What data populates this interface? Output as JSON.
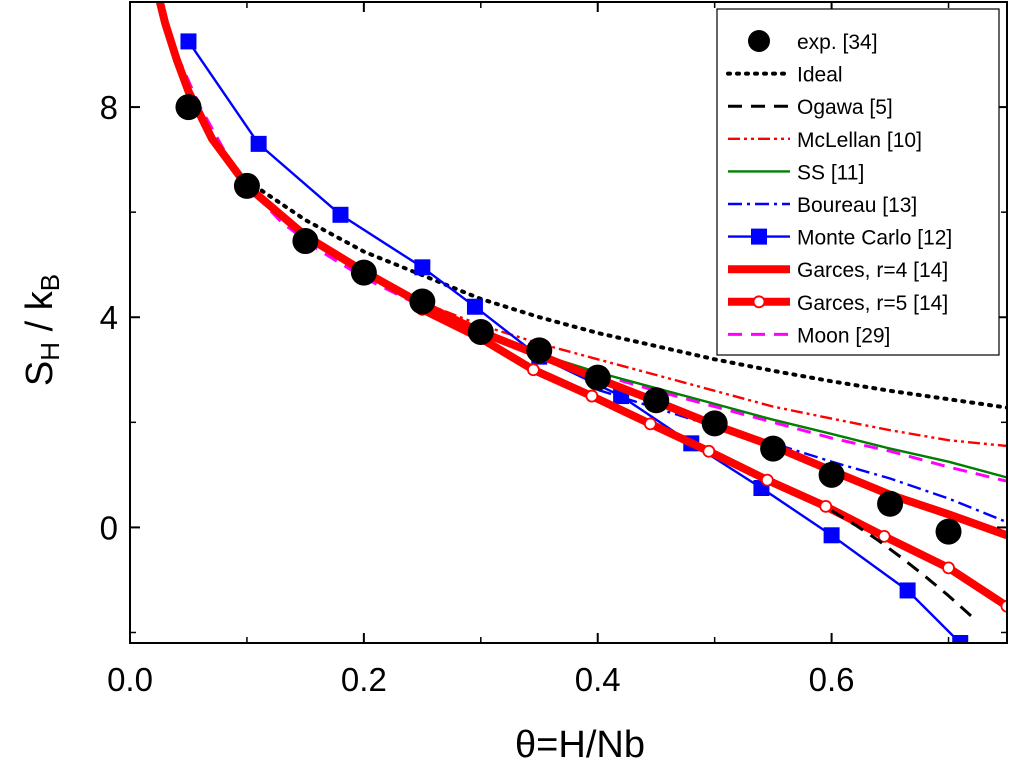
{
  "chart_data": {
    "type": "line",
    "title": "",
    "xlabel": "θ=H/Nb",
    "ylabel": {
      "main": "S",
      "sub1": "H",
      "mid": " / k",
      "sub2": "B"
    },
    "xlim": [
      0.0,
      0.75
    ],
    "ylim": [
      -2.2,
      10.0
    ],
    "xticks": [
      0.0,
      0.2,
      0.4,
      0.6
    ],
    "xtick_labels": [
      "0.0",
      "0.2",
      "0.4",
      "0.6"
    ],
    "yticks": [
      0,
      4,
      8
    ],
    "ytick_labels": [
      "0",
      "4",
      "8"
    ],
    "grid": false,
    "legend_position": "top-right",
    "colors": {
      "black": "#000000",
      "red": "#ff0000",
      "blue": "#0000ff",
      "green": "#008000",
      "magenta": "#ff00ff",
      "white": "#ffffff"
    },
    "series": [
      {
        "name": "exp. [34]",
        "style": "markers",
        "marker": "circle",
        "color": "#000000",
        "x": [
          0.05,
          0.1,
          0.15,
          0.2,
          0.25,
          0.3,
          0.35,
          0.4,
          0.45,
          0.5,
          0.55,
          0.6,
          0.65,
          0.7
        ],
        "y": [
          8.0,
          6.5,
          5.45,
          4.85,
          4.3,
          3.72,
          3.37,
          2.85,
          2.42,
          1.98,
          1.5,
          1.0,
          0.45,
          -0.08
        ]
      },
      {
        "name": "Ideal",
        "style": "dotted",
        "color": "#000000",
        "x": [
          0.1,
          0.15,
          0.2,
          0.25,
          0.3,
          0.35,
          0.4,
          0.45,
          0.5,
          0.55,
          0.6,
          0.65,
          0.7,
          0.75
        ],
        "y": [
          6.6,
          5.85,
          5.25,
          4.8,
          4.35,
          4.0,
          3.7,
          3.45,
          3.2,
          2.98,
          2.78,
          2.6,
          2.44,
          2.28
        ]
      },
      {
        "name": "Ogawa [5]",
        "style": "dashed",
        "color": "#000000",
        "x": [
          0.6,
          0.62,
          0.64,
          0.66,
          0.68,
          0.7,
          0.72
        ],
        "y": [
          0.32,
          0.05,
          -0.25,
          -0.58,
          -0.93,
          -1.3,
          -1.7
        ]
      },
      {
        "name": "McLellan [10]",
        "style": "dashdotdot",
        "color": "#ff0000",
        "x": [
          0.2,
          0.25,
          0.3,
          0.35,
          0.4,
          0.45,
          0.5,
          0.55,
          0.6,
          0.65,
          0.7,
          0.75
        ],
        "y": [
          4.85,
          4.28,
          3.85,
          3.5,
          3.2,
          2.9,
          2.6,
          2.3,
          2.07,
          1.85,
          1.66,
          1.55
        ]
      },
      {
        "name": "SS [11]",
        "style": "solid",
        "color": "#008000",
        "x": [
          0.3,
          0.35,
          0.4,
          0.45,
          0.5,
          0.55,
          0.6,
          0.65,
          0.7,
          0.75
        ],
        "y": [
          3.7,
          3.3,
          2.95,
          2.65,
          2.35,
          2.05,
          1.78,
          1.5,
          1.25,
          0.95
        ]
      },
      {
        "name": "Boureau [13]",
        "style": "dashdot",
        "color": "#0000ff",
        "x": [
          0.4,
          0.45,
          0.5,
          0.55,
          0.6,
          0.65,
          0.7,
          0.75
        ],
        "y": [
          2.62,
          2.27,
          1.92,
          1.6,
          1.25,
          0.93,
          0.55,
          0.1
        ]
      },
      {
        "name": "Monte Carlo [12]",
        "style": "line+markers",
        "marker": "square",
        "color": "#0000ff",
        "x": [
          0.05,
          0.11,
          0.18,
          0.25,
          0.295,
          0.35,
          0.42,
          0.48,
          0.54,
          0.6,
          0.665,
          0.71
        ],
        "y": [
          9.25,
          7.3,
          5.95,
          4.95,
          4.2,
          3.25,
          2.5,
          1.6,
          0.75,
          -0.15,
          -1.2,
          -2.2
        ]
      },
      {
        "name": "Garces, r=4 [14]",
        "style": "thick",
        "color": "#ff0000",
        "x": [
          0.02,
          0.03,
          0.04,
          0.05,
          0.07,
          0.1,
          0.15,
          0.2,
          0.25,
          0.3,
          0.35,
          0.4,
          0.45,
          0.5,
          0.55,
          0.6,
          0.65,
          0.7,
          0.75
        ],
        "y": [
          10.5,
          9.6,
          8.9,
          8.3,
          7.4,
          6.5,
          5.55,
          4.87,
          4.25,
          3.72,
          3.28,
          2.83,
          2.4,
          1.95,
          1.55,
          1.08,
          0.62,
          0.25,
          -0.15
        ]
      },
      {
        "name": "Garces, r=5 [14]",
        "style": "thick+markers",
        "marker": "open-circle",
        "color": "#ff0000",
        "x": [
          0.25,
          0.3,
          0.345,
          0.395,
          0.445,
          0.495,
          0.545,
          0.595,
          0.645,
          0.7,
          0.75
        ],
        "y": [
          4.15,
          3.6,
          3.0,
          2.5,
          1.97,
          1.45,
          0.9,
          0.4,
          -0.17,
          -0.77,
          -1.5
        ]
      },
      {
        "name": "Moon [29]",
        "style": "dashed",
        "color": "#ff00ff",
        "x": [
          0.04,
          0.06,
          0.08,
          0.1,
          0.13,
          0.16,
          0.2,
          0.25,
          0.3,
          0.35,
          0.4,
          0.45,
          0.5,
          0.55,
          0.6,
          0.65,
          0.7,
          0.75
        ],
        "y": [
          9.0,
          8.0,
          7.2,
          6.5,
          5.8,
          5.3,
          4.75,
          4.2,
          3.7,
          3.3,
          2.92,
          2.6,
          2.3,
          2.0,
          1.7,
          1.45,
          1.15,
          0.88
        ]
      }
    ]
  }
}
